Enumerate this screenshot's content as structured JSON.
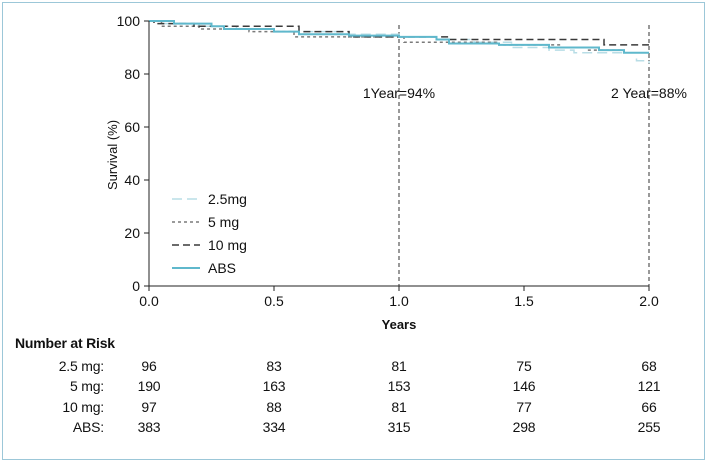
{
  "chart_data": {
    "type": "line",
    "title": "",
    "xlabel": "Years",
    "ylabel": "Survival (%)",
    "xlim": [
      0,
      2
    ],
    "ylim": [
      0,
      100
    ],
    "x_ticks": [
      "0.0",
      "0.5",
      "1.0",
      "1.5",
      "2.0"
    ],
    "x_tick_values": [
      0,
      0.5,
      1,
      1.5,
      2
    ],
    "y_ticks": [
      "0",
      "20",
      "40",
      "60",
      "80",
      "100"
    ],
    "y_tick_values": [
      0,
      20,
      40,
      60,
      80,
      100
    ],
    "grid": false,
    "legend_position": "bottom-left",
    "series": [
      {
        "name": "2.5mg",
        "color": "#b8dde6",
        "dash": "long-dash",
        "points": [
          [
            0,
            100
          ],
          [
            0.05,
            99
          ],
          [
            0.2,
            98
          ],
          [
            0.35,
            97
          ],
          [
            0.5,
            96
          ],
          [
            0.62,
            96
          ],
          [
            0.8,
            95
          ],
          [
            1.0,
            94
          ],
          [
            1.15,
            93
          ],
          [
            1.3,
            92
          ],
          [
            1.45,
            90
          ],
          [
            1.6,
            89
          ],
          [
            1.7,
            88
          ],
          [
            1.85,
            88
          ],
          [
            1.95,
            85
          ],
          [
            2.0,
            84
          ]
        ]
      },
      {
        "name": "5 mg",
        "color": "#7a7a7a",
        "dash": "short-dash",
        "points": [
          [
            0,
            100
          ],
          [
            0.05,
            98
          ],
          [
            0.2,
            97
          ],
          [
            0.4,
            96
          ],
          [
            0.58,
            94
          ],
          [
            0.8,
            94
          ],
          [
            1.0,
            94
          ],
          [
            1.02,
            92
          ],
          [
            1.2,
            92
          ],
          [
            1.4,
            91
          ],
          [
            1.55,
            91
          ],
          [
            1.65,
            90
          ],
          [
            1.75,
            89
          ],
          [
            1.9,
            88
          ],
          [
            2.0,
            86
          ]
        ]
      },
      {
        "name": "10 mg",
        "color": "#3a3a3a",
        "dash": "dash",
        "points": [
          [
            0,
            100
          ],
          [
            0.02,
            99
          ],
          [
            0.18,
            98
          ],
          [
            0.28,
            98
          ],
          [
            0.58,
            98
          ],
          [
            0.6,
            96
          ],
          [
            0.75,
            96
          ],
          [
            0.8,
            94
          ],
          [
            1.0,
            94
          ],
          [
            1.02,
            94
          ],
          [
            1.2,
            93
          ],
          [
            1.6,
            93
          ],
          [
            1.8,
            93
          ],
          [
            1.82,
            91
          ],
          [
            2.0,
            91
          ]
        ]
      },
      {
        "name": "ABS",
        "color": "#5fb8cc",
        "dash": "solid",
        "points": [
          [
            0,
            100
          ],
          [
            0.1,
            99
          ],
          [
            0.25,
            98
          ],
          [
            0.3,
            97
          ],
          [
            0.5,
            96
          ],
          [
            0.6,
            95
          ],
          [
            0.8,
            94.5
          ],
          [
            1.0,
            94
          ],
          [
            1.15,
            93
          ],
          [
            1.2,
            91.5
          ],
          [
            1.4,
            91
          ],
          [
            1.6,
            90
          ],
          [
            1.8,
            89
          ],
          [
            1.9,
            88
          ],
          [
            2.0,
            88
          ]
        ]
      }
    ],
    "annotations": [
      {
        "text": "1Year=94%",
        "x": 1.0,
        "y": 71
      },
      {
        "text": "2 Year=88%",
        "x": 2.0,
        "y": 71
      }
    ],
    "reference_lines_x": [
      1.0,
      2.0
    ]
  },
  "risk_table": {
    "title": "Number at Risk",
    "rows": [
      {
        "label": "2.5 mg:",
        "values": [
          "96",
          "83",
          "81",
          "75",
          "68"
        ]
      },
      {
        "label": "5 mg:",
        "values": [
          "190",
          "163",
          "153",
          "146",
          "121"
        ]
      },
      {
        "label": "10 mg:",
        "values": [
          "97",
          "88",
          "81",
          "77",
          "66"
        ]
      },
      {
        "label": "ABS:",
        "values": [
          "383",
          "334",
          "315",
          "298",
          "255"
        ]
      }
    ]
  },
  "colors": {
    "border": "#9cc7d8",
    "axis": "#222222",
    "abs_line": "#5fb8cc",
    "light_line": "#b8dde6"
  }
}
